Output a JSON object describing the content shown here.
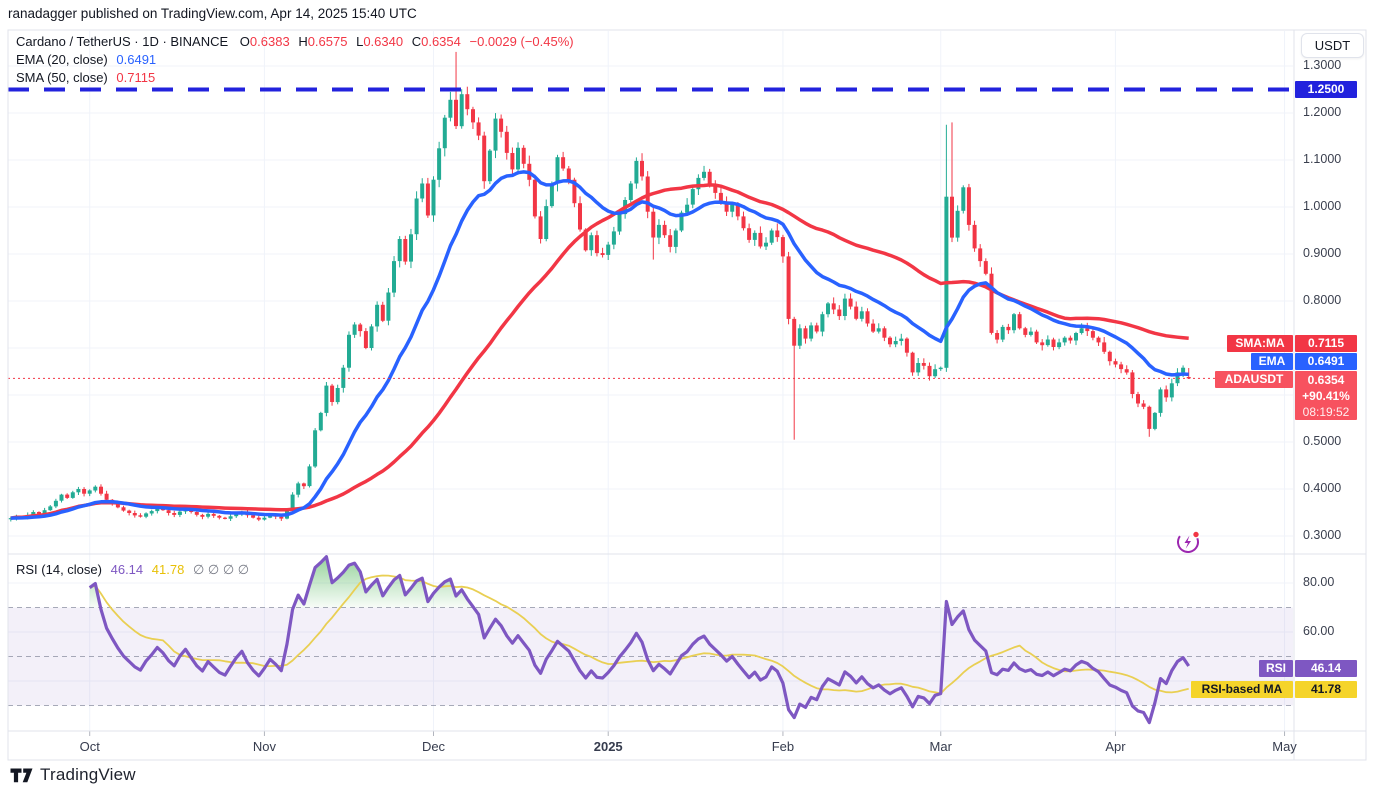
{
  "header": {
    "published_line": "ranadagger published on TradingView.com, Apr 14, 2025 15:40 UTC"
  },
  "legend": {
    "symbol_line": {
      "title": "Cardano / TetherUS · 1D · BINANCE",
      "o_label": "O",
      "o_value": "0.6383",
      "h_label": "H",
      "h_value": "0.6575",
      "l_label": "L",
      "l_value": "0.6340",
      "c_label": "C",
      "c_value": "0.6354",
      "change": "−0.0029 (−0.45%)"
    },
    "ema_line": {
      "label": "EMA (20, close)",
      "value": "0.6491"
    },
    "sma_line": {
      "label": "SMA (50, close)",
      "value": "0.7115"
    }
  },
  "rsi_legend": {
    "label": "RSI (14, close)",
    "value": "46.14",
    "ma_value": "41.78",
    "empty_slots": "∅  ∅  ∅  ∅"
  },
  "price_axis": {
    "currency_button": "USDT",
    "labels": [
      {
        "text": "1.3000",
        "p": 1.3
      },
      {
        "text": "1.2000",
        "p": 1.2
      },
      {
        "text": "1.1000",
        "p": 1.1
      },
      {
        "text": "1.0000",
        "p": 1.0
      },
      {
        "text": "0.9000",
        "p": 0.9
      },
      {
        "text": "0.8000",
        "p": 0.8
      },
      {
        "text": "0.5000",
        "p": 0.5
      },
      {
        "text": "0.4000",
        "p": 0.4
      },
      {
        "text": "0.3000",
        "p": 0.3
      }
    ],
    "level_badge": {
      "text": "1.2500"
    },
    "sma_badge": {
      "name": "SMA:MA",
      "value": "0.7115"
    },
    "ema_badge": {
      "name": "EMA",
      "value": "0.6491"
    },
    "symbol_badge": {
      "name": "ADAUSDT",
      "price": "0.6354",
      "change_pct": "+90.41%",
      "countdown": "08:19:52"
    }
  },
  "rsi_axis": {
    "labels": [
      {
        "text": "80.00",
        "v": 80
      },
      {
        "text": "60.00",
        "v": 60
      }
    ],
    "rsi_badge": {
      "name": "RSI",
      "value": "46.14"
    },
    "ma_badge": {
      "name": "RSI-based MA",
      "value": "41.78"
    }
  },
  "time_axis": {
    "labels": [
      {
        "text": "Oct",
        "i": 14,
        "bold": false
      },
      {
        "text": "Nov",
        "i": 45,
        "bold": false
      },
      {
        "text": "Dec",
        "i": 75,
        "bold": false
      },
      {
        "text": "2025",
        "i": 106,
        "bold": true
      },
      {
        "text": "Feb",
        "i": 137,
        "bold": false
      },
      {
        "text": "Mar",
        "i": 165,
        "bold": false
      },
      {
        "text": "Apr",
        "i": 196,
        "bold": false
      },
      {
        "text": "May",
        "i": 226,
        "bold": false
      }
    ]
  },
  "footer": {
    "brand": "TradingView"
  },
  "colors": {
    "up": "#22ab94",
    "down": "#f23645",
    "ema": "#2962ff",
    "sma": "#f23645",
    "level_blue": "#2222dd",
    "current_dotted": "#f23645",
    "rsi": "#7e57c2",
    "rsi_ma": "#e9cf53",
    "rsi_fill": "#3fae49",
    "band": "rgba(126,87,194,0.09)",
    "dash_gray": "#8b8fa1",
    "grid": "#f0f3fa",
    "frame": "#e0e3eb",
    "tick": "#b2b5be"
  },
  "chart_data": {
    "type": "candlestick",
    "symbol": "ADAUSDT",
    "exchange": "BINANCE",
    "timeframe": "1D",
    "title": "Cardano / TetherUS",
    "start_date": "2024-09-17",
    "end_date": "2025-04-14",
    "price_axis_range": [
      0.264,
      1.377
    ],
    "level_line": 1.25,
    "current_price": 0.6354,
    "open_first": 0.336,
    "closes": [
      0.338,
      0.342,
      0.34,
      0.345,
      0.351,
      0.347,
      0.355,
      0.363,
      0.375,
      0.388,
      0.381,
      0.393,
      0.4,
      0.39,
      0.397,
      0.405,
      0.39,
      0.377,
      0.369,
      0.361,
      0.354,
      0.349,
      0.344,
      0.341,
      0.348,
      0.353,
      0.359,
      0.355,
      0.349,
      0.345,
      0.352,
      0.357,
      0.351,
      0.345,
      0.341,
      0.347,
      0.343,
      0.339,
      0.337,
      0.342,
      0.347,
      0.351,
      0.344,
      0.339,
      0.335,
      0.339,
      0.344,
      0.341,
      0.337,
      0.353,
      0.388,
      0.412,
      0.406,
      0.448,
      0.525,
      0.562,
      0.62,
      0.585,
      0.615,
      0.658,
      0.728,
      0.75,
      0.736,
      0.7,
      0.746,
      0.792,
      0.758,
      0.818,
      0.885,
      0.932,
      0.884,
      0.942,
      1.018,
      1.05,
      0.982,
      1.058,
      1.125,
      1.19,
      1.228,
      1.172,
      1.24,
      1.208,
      1.18,
      1.152,
      1.055,
      1.12,
      1.188,
      1.16,
      1.115,
      1.08,
      1.126,
      1.092,
      1.058,
      0.98,
      0.932,
      1.002,
      1.05,
      1.106,
      1.082,
      1.058,
      1.008,
      0.952,
      0.908,
      0.94,
      0.902,
      0.898,
      0.92,
      0.948,
      0.985,
      1.015,
      1.05,
      1.098,
      1.065,
      0.99,
      0.935,
      0.962,
      0.94,
      0.915,
      0.95,
      0.988,
      1.005,
      1.038,
      1.062,
      1.075,
      1.048,
      1.03,
      1.012,
      0.99,
      1.005,
      0.98,
      0.955,
      0.93,
      0.945,
      0.916,
      0.924,
      0.95,
      0.936,
      0.895,
      0.762,
      0.705,
      0.742,
      0.72,
      0.748,
      0.735,
      0.772,
      0.795,
      0.782,
      0.768,
      0.805,
      0.788,
      0.762,
      0.778,
      0.752,
      0.735,
      0.742,
      0.722,
      0.708,
      0.715,
      0.72,
      0.69,
      0.648,
      0.668,
      0.662,
      0.64,
      0.655,
      0.658,
      1.022,
      0.935,
      0.992,
      1.042,
      0.962,
      0.912,
      0.885,
      0.858,
      0.732,
      0.718,
      0.745,
      0.738,
      0.772,
      0.742,
      0.728,
      0.735,
      0.712,
      0.706,
      0.718,
      0.702,
      0.712,
      0.722,
      0.716,
      0.732,
      0.742,
      0.736,
      0.722,
      0.712,
      0.692,
      0.672,
      0.665,
      0.655,
      0.648,
      0.602,
      0.582,
      0.575,
      0.528,
      0.562,
      0.612,
      0.595,
      0.625,
      0.648,
      0.658,
      0.6354
    ],
    "wick_overrides": [
      {
        "i": 79,
        "high": 1.33
      },
      {
        "i": 114,
        "low": 0.888
      },
      {
        "i": 139,
        "low": 0.505
      },
      {
        "i": 166,
        "high": 1.175
      },
      {
        "i": 167,
        "high": 1.18
      },
      {
        "i": 202,
        "low": 0.511
      }
    ],
    "last_candle": {
      "open": 0.6383,
      "high": 0.6575,
      "low": 0.634,
      "close": 0.6354
    },
    "overlays": [
      {
        "name": "EMA 20",
        "current": 0.6491
      },
      {
        "name": "SMA 50",
        "current": 0.7115
      }
    ],
    "rsi": {
      "period": 14,
      "current": 46.14,
      "ma_current": 41.78,
      "overbought": 70,
      "mid": 50,
      "oversold": 30,
      "axis_ticks": [
        80,
        60,
        40
      ]
    }
  }
}
